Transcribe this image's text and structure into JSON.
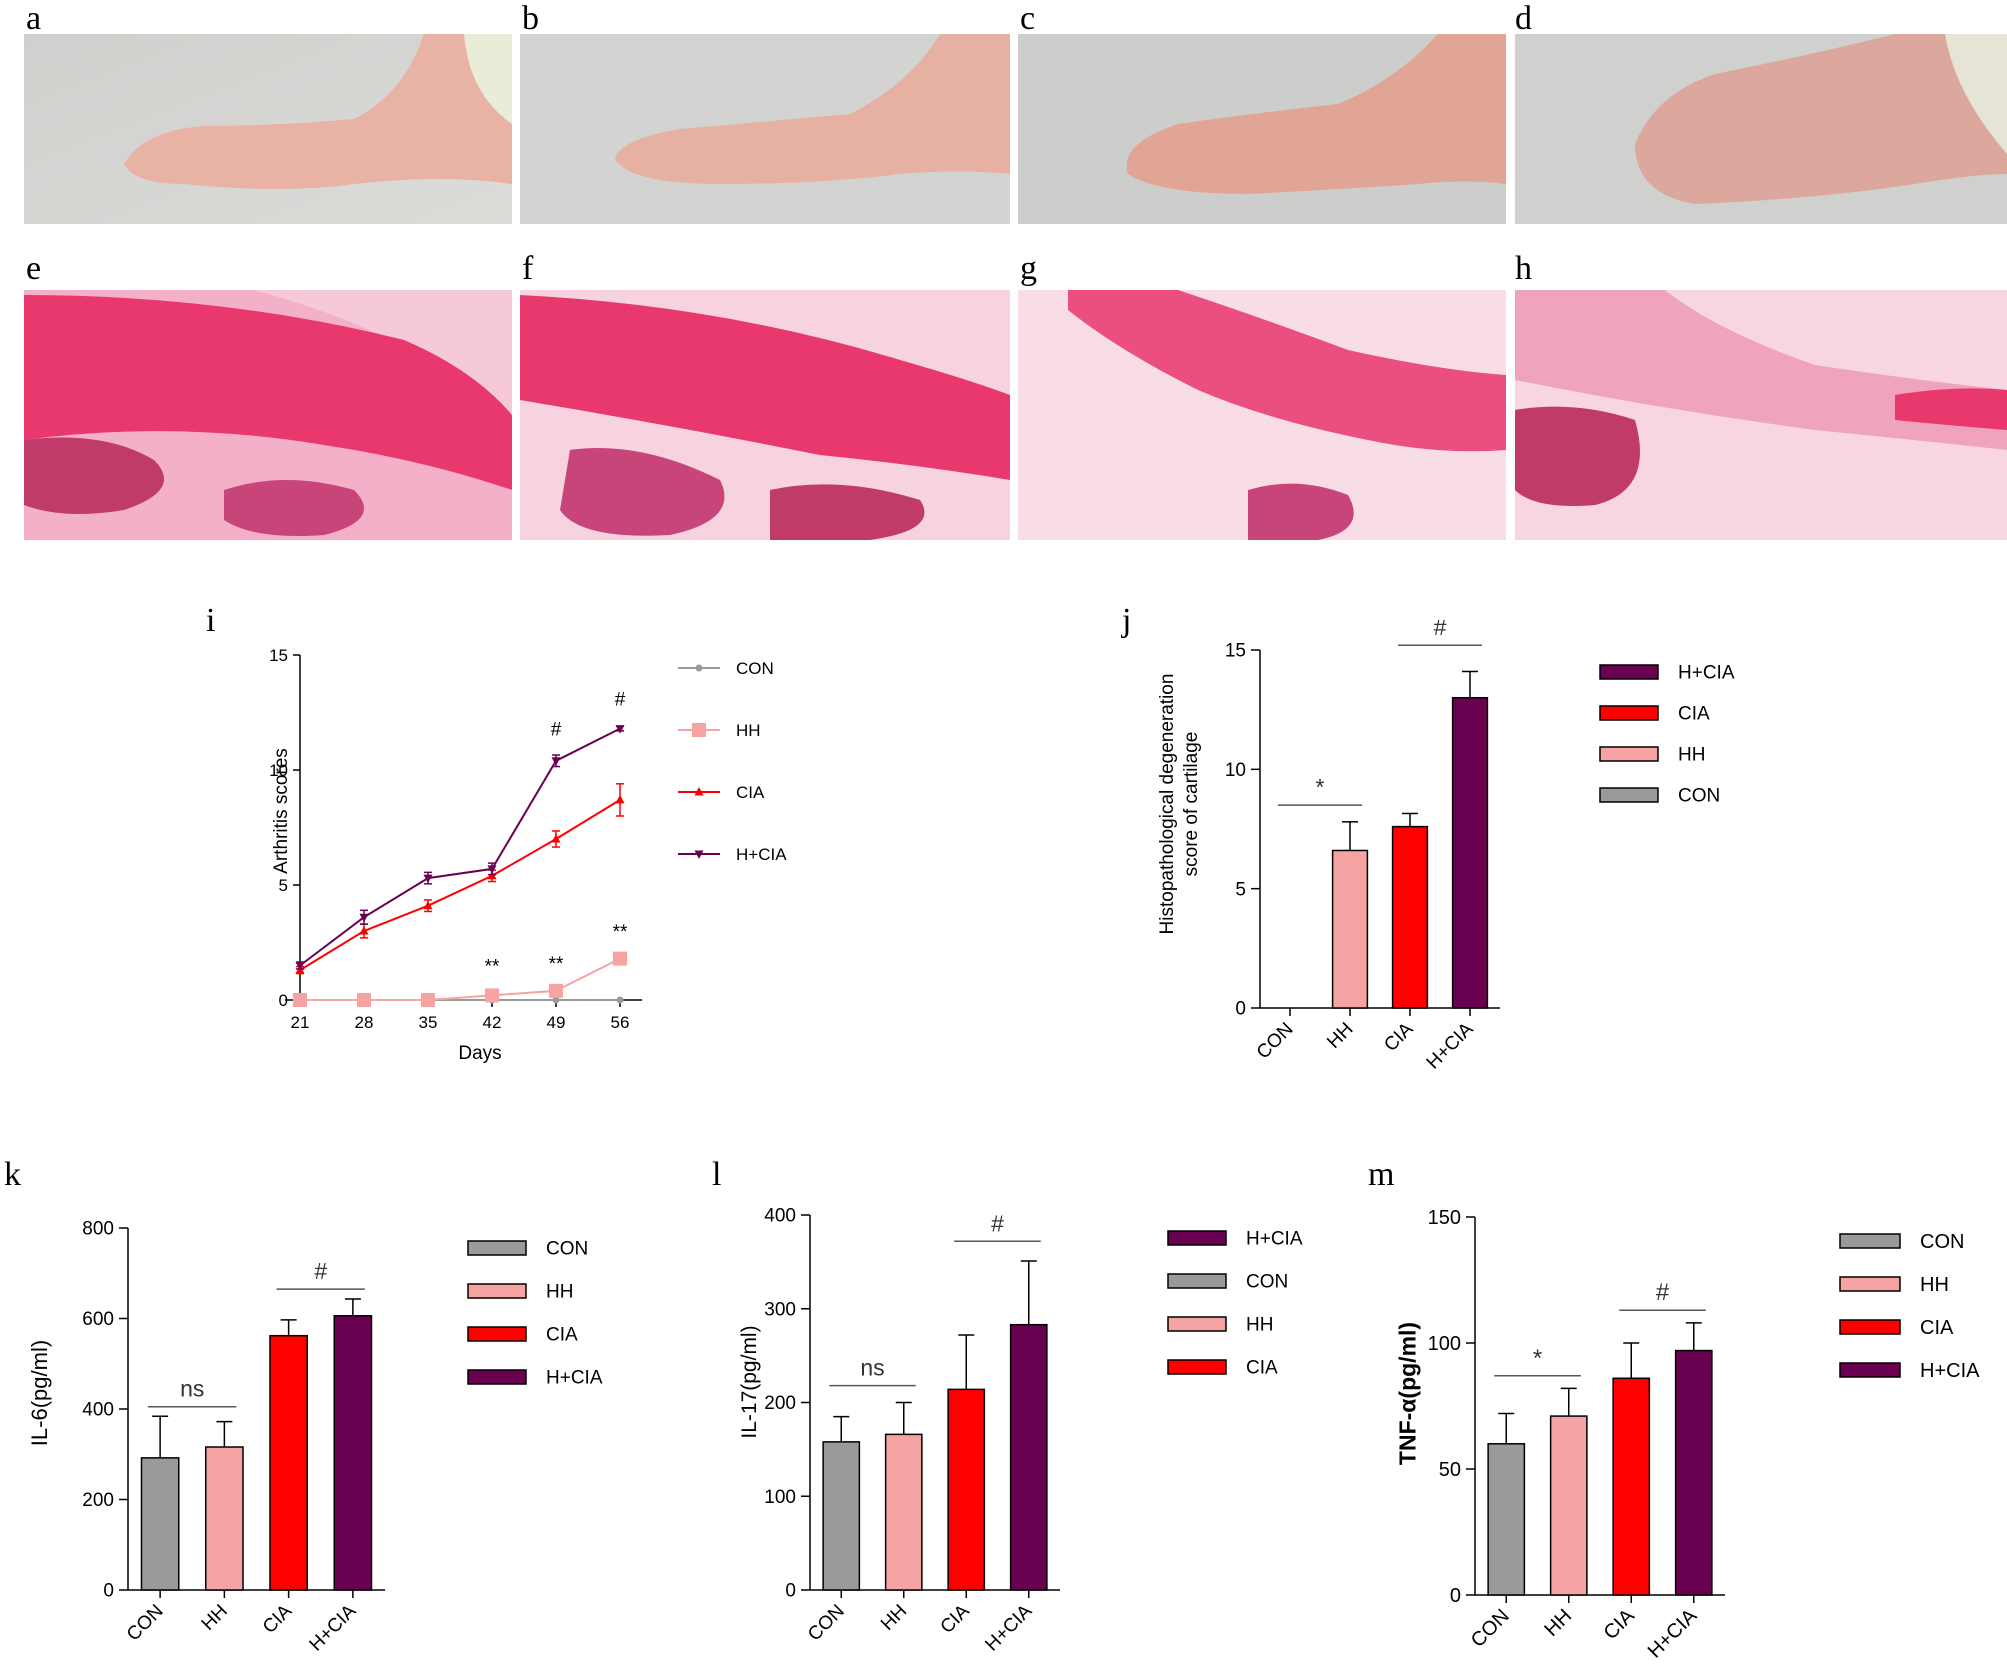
{
  "panel_letters": [
    "a",
    "b",
    "c",
    "d",
    "e",
    "f",
    "g",
    "h",
    "i",
    "j",
    "k",
    "l",
    "m"
  ],
  "colors": {
    "CON": "#9a9a9a",
    "HH": "#f6a3a3",
    "CIA": "#ff0000",
    "H+CIA": "#6a0050",
    "paw_bg": "#d6d6d3",
    "paw_skin": "#e9b0a0",
    "tissue_pink": "#f2a7c4",
    "cartilage_red": "#e8386e"
  },
  "chart_data": [
    {
      "id": "i",
      "type": "line",
      "x": [
        21,
        28,
        35,
        42,
        49,
        56
      ],
      "series": [
        {
          "name": "CON",
          "values": [
            0,
            0,
            0,
            0,
            0,
            0
          ],
          "err": [
            0,
            0,
            0,
            0,
            0,
            0
          ]
        },
        {
          "name": "HH",
          "values": [
            0,
            0,
            0,
            0.2,
            0.4,
            1.8
          ],
          "err": [
            0,
            0,
            0,
            0.05,
            0.1,
            0.15
          ]
        },
        {
          "name": "CIA",
          "values": [
            1.3,
            3.0,
            4.1,
            5.4,
            7.0,
            8.7
          ],
          "err": [
            0.15,
            0.3,
            0.25,
            0.25,
            0.35,
            0.7
          ]
        },
        {
          "name": "H+CIA",
          "values": [
            1.5,
            3.6,
            5.3,
            5.7,
            10.4,
            11.8
          ],
          "err": [
            0.15,
            0.3,
            0.25,
            0.25,
            0.25,
            0.1
          ]
        }
      ],
      "xlabel": "Days",
      "ylabel": "Arthritis scores",
      "ylim": [
        0,
        15
      ],
      "yticks": [
        0,
        5,
        10,
        15
      ],
      "annotations": [
        {
          "text": "**",
          "x": 42,
          "y": 1.2
        },
        {
          "text": "**",
          "x": 49,
          "y": 1.3
        },
        {
          "text": "**",
          "x": 56,
          "y": 2.7
        },
        {
          "text": "#",
          "x": 49,
          "y": 11.5
        },
        {
          "text": "#",
          "x": 56,
          "y": 12.8
        }
      ],
      "legend": [
        "CON",
        "HH",
        "CIA",
        "H+CIA"
      ],
      "legend_position": "right"
    },
    {
      "id": "j",
      "type": "bar",
      "categories": [
        "CON",
        "HH",
        "CIA",
        "H+CIA"
      ],
      "values": [
        0,
        6.6,
        7.6,
        13.0
      ],
      "err": [
        0,
        1.2,
        0.55,
        1.1
      ],
      "ylabel": "Histopathological degeneration score of cartilage",
      "ylim": [
        0,
        15
      ],
      "yticks": [
        0,
        5,
        10,
        15
      ],
      "annotations": [
        {
          "text": "*",
          "from": "CON",
          "to": "HH",
          "y": 8.5
        },
        {
          "text": "#",
          "from": "CIA",
          "to": "H+CIA",
          "y": 15.2
        }
      ],
      "legend": [
        "H+CIA",
        "CIA",
        "HH",
        "CON"
      ],
      "legend_position": "right"
    },
    {
      "id": "k",
      "type": "bar",
      "categories": [
        "CON",
        "HH",
        "CIA",
        "H+CIA"
      ],
      "values": [
        292,
        316,
        562,
        606
      ],
      "err": [
        92,
        56,
        35,
        37
      ],
      "ylabel": "IL-6(pg/ml)",
      "ylim": [
        0,
        800
      ],
      "yticks": [
        0,
        200,
        400,
        600,
        800
      ],
      "annotations": [
        {
          "text": "ns",
          "from": "CON",
          "to": "HH",
          "y": 405
        },
        {
          "text": "#",
          "from": "CIA",
          "to": "H+CIA",
          "y": 665
        }
      ],
      "legend": [
        "CON",
        "HH",
        "CIA",
        "H+CIA"
      ],
      "legend_position": "right"
    },
    {
      "id": "l",
      "type": "bar",
      "categories": [
        "CON",
        "HH",
        "CIA",
        "H+CIA"
      ],
      "values": [
        158,
        166,
        214,
        283
      ],
      "err": [
        27,
        34,
        58,
        68
      ],
      "ylabel": "IL-17(pg/ml)",
      "ylim": [
        0,
        400
      ],
      "yticks": [
        0,
        100,
        200,
        300,
        400
      ],
      "annotations": [
        {
          "text": "ns",
          "from": "CON",
          "to": "HH",
          "y": 218
        },
        {
          "text": "#",
          "from": "CIA",
          "to": "H+CIA",
          "y": 372
        }
      ],
      "legend": [
        "H+CIA",
        "CON",
        "HH",
        "CIA"
      ],
      "legend_position": "right"
    },
    {
      "id": "m",
      "type": "bar",
      "categories": [
        "CON",
        "HH",
        "CIA",
        "H+CIA"
      ],
      "values": [
        60,
        71,
        86,
        97
      ],
      "err": [
        12,
        11,
        14,
        11
      ],
      "ylabel": "TNF-α(pg/ml)",
      "ylim": [
        0,
        150
      ],
      "yticks": [
        0,
        50,
        100,
        150
      ],
      "annotations": [
        {
          "text": "*",
          "from": "CON",
          "to": "HH",
          "y": 87
        },
        {
          "text": "#",
          "from": "CIA",
          "to": "H+CIA",
          "y": 113
        }
      ],
      "legend": [
        "CON",
        "HH",
        "CIA",
        "H+CIA"
      ],
      "legend_position": "right"
    }
  ]
}
